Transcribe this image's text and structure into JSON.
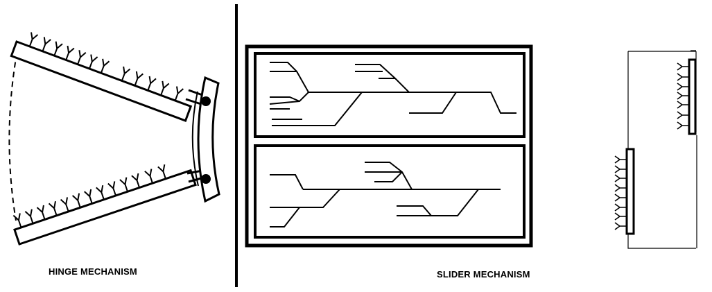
{
  "labels": {
    "hinge": "HINGE MECHANISM",
    "slider": "SLIDER MECHANISM"
  },
  "colors": {
    "ink": "#000000",
    "background": "#ffffff"
  }
}
